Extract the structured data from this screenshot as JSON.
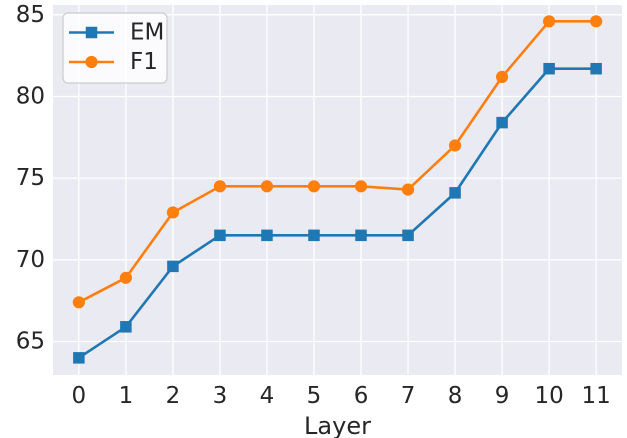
{
  "chart_data": {
    "type": "line",
    "title": "",
    "xlabel": "Layer",
    "ylabel": "",
    "x": [
      0,
      1,
      2,
      3,
      4,
      5,
      6,
      7,
      8,
      9,
      10,
      11
    ],
    "series": [
      {
        "name": "EM",
        "marker": "square",
        "color": "#1f77b4",
        "values": [
          64.0,
          65.9,
          69.6,
          71.5,
          71.5,
          71.5,
          71.5,
          71.5,
          74.1,
          78.4,
          81.7,
          81.7
        ]
      },
      {
        "name": "F1",
        "marker": "circle",
        "color": "#ff7f0e",
        "values": [
          67.4,
          68.9,
          72.9,
          74.5,
          74.5,
          74.5,
          74.5,
          74.3,
          77.0,
          81.2,
          84.6,
          84.6
        ]
      }
    ],
    "xticks": [
      "0",
      "1",
      "2",
      "3",
      "4",
      "5",
      "6",
      "7",
      "8",
      "9",
      "10",
      "11"
    ],
    "yticks": [
      "65",
      "70",
      "75",
      "80",
      "85"
    ],
    "ytick_values": [
      65,
      70,
      75,
      80,
      85
    ],
    "xlim": [
      -0.55,
      11.55
    ],
    "ylim": [
      62.95,
      85.6
    ],
    "grid": true,
    "legend_position": "upper left",
    "colors": {
      "plot_background": "#eaeaf2",
      "gridline": "#ffffff",
      "text": "#262626",
      "legend_face": "#f7f7fa",
      "legend_edge": "#cccccc"
    }
  }
}
